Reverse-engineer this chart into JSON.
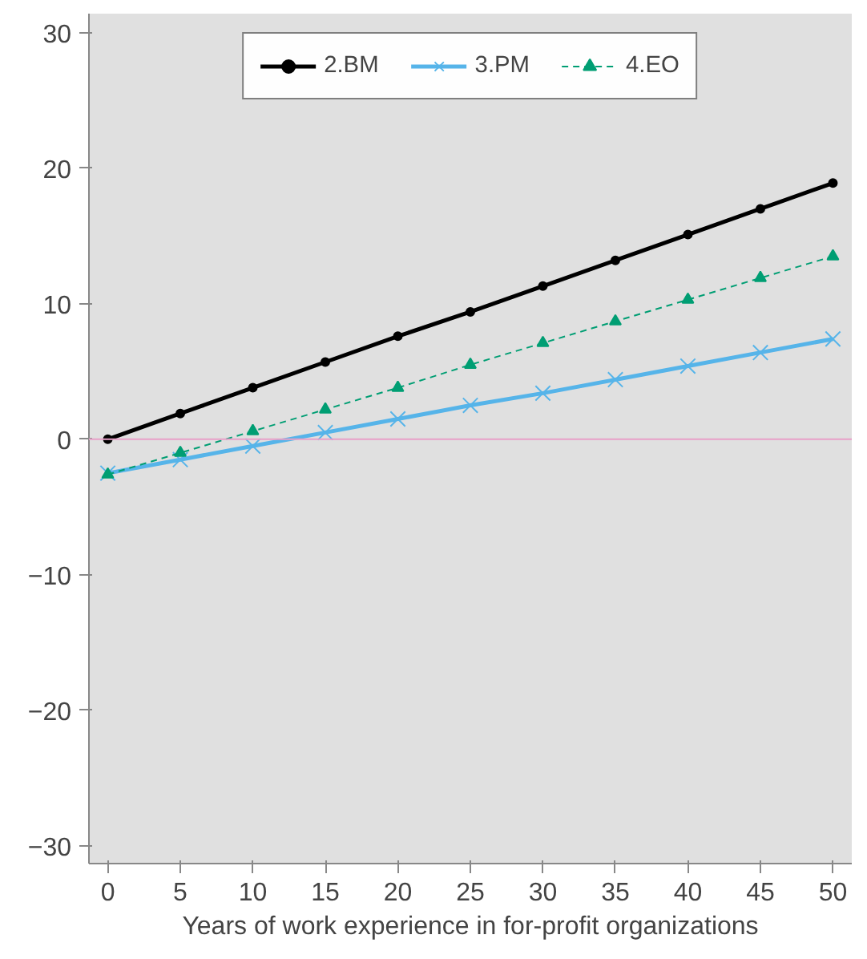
{
  "chart_data": {
    "type": "line",
    "xlabel": "Years of work experience in for-profit organizations",
    "x": [
      0,
      5,
      10,
      15,
      20,
      25,
      30,
      35,
      40,
      45,
      50
    ],
    "series": [
      {
        "name": "2.BM",
        "color": "#000000",
        "marker": "circle",
        "line_style": "solid",
        "values": [
          0,
          1.9,
          3.8,
          5.7,
          7.6,
          9.4,
          11.3,
          13.2,
          15.1,
          17.0,
          18.9
        ]
      },
      {
        "name": "3.PM",
        "color": "#56b4e9",
        "marker": "cross",
        "line_style": "solid",
        "values": [
          -2.5,
          -1.5,
          -0.5,
          0.5,
          1.5,
          2.5,
          3.4,
          4.4,
          5.4,
          6.4,
          7.4
        ]
      },
      {
        "name": "4.EO",
        "color": "#009e73",
        "marker": "triangle",
        "line_style": "dashed",
        "values": [
          -2.6,
          -1.0,
          0.6,
          2.2,
          3.8,
          5.5,
          7.1,
          8.7,
          10.3,
          11.9,
          13.5
        ]
      }
    ],
    "xlim": [
      -1.3,
      51.3
    ],
    "ylim": [
      -31.3,
      31.4
    ],
    "xticks": [
      0,
      5,
      10,
      15,
      20,
      25,
      30,
      35,
      40,
      45,
      50
    ],
    "yticks": [
      -30,
      -20,
      -10,
      0,
      10,
      20,
      30
    ],
    "ref_lines": [
      {
        "axis": "y",
        "value": 0,
        "color": "#e8a0c8"
      }
    ],
    "grid": false,
    "legend": "top"
  }
}
